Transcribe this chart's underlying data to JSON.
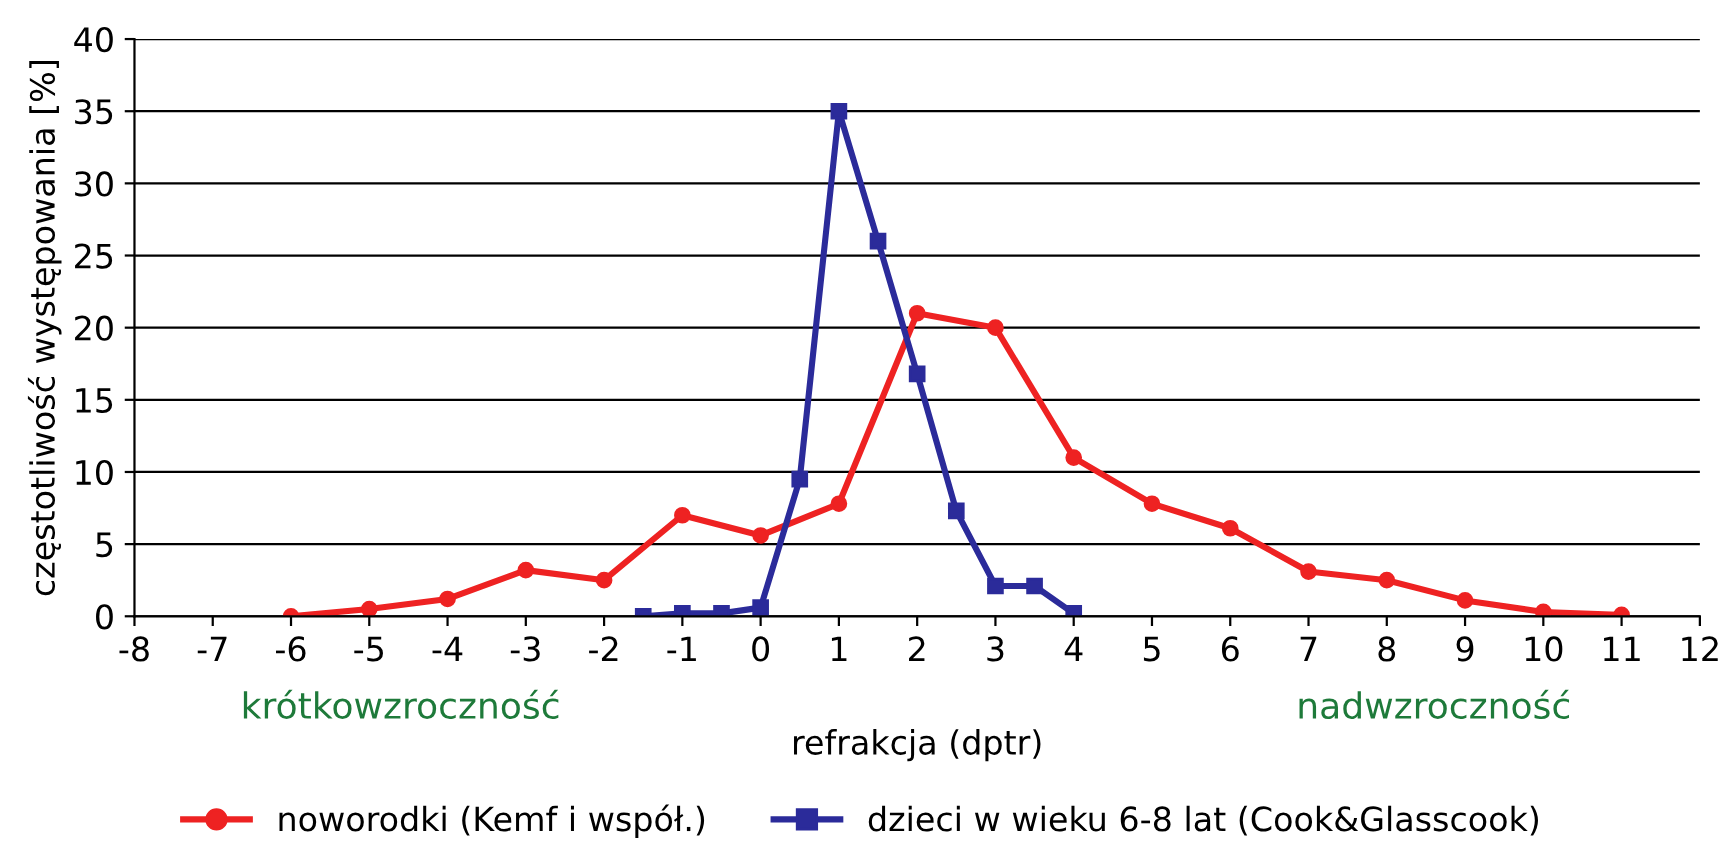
{
  "chart_data": {
    "type": "line",
    "xlabel": "refrakcja (dptr)",
    "ylabel": "częstotliwość występowania [%]",
    "annotations": [
      "krótkowzroczność",
      "nadwzroczność"
    ],
    "xlim": [
      -8,
      12
    ],
    "xticks": [
      -8,
      -7,
      -6,
      -5,
      -4,
      -3,
      -2,
      -1,
      0,
      1,
      2,
      3,
      4,
      5,
      6,
      7,
      8,
      9,
      10,
      11,
      12
    ],
    "ylim": [
      0,
      40
    ],
    "yticks": [
      0,
      5,
      10,
      15,
      20,
      25,
      30,
      35,
      40
    ],
    "grid": "y",
    "legend": "bottom",
    "series": [
      {
        "name": "noworodki (Kemf i współ.)",
        "color": "#ee2222",
        "marker": "circle",
        "x": [
          -6,
          -5,
          -4,
          -3,
          -2,
          -1,
          0,
          1,
          2,
          3,
          4,
          5,
          6,
          7,
          8,
          9,
          10,
          11
        ],
        "values": [
          0,
          0.5,
          1.2,
          3.2,
          2.5,
          7,
          5.6,
          7.8,
          21,
          20,
          11,
          7.8,
          6.1,
          3.1,
          2.5,
          1.1,
          0.3,
          0.1
        ]
      },
      {
        "name": "dzieci w wieku 6-8 lat (Cook&Glasscook)",
        "color": "#2b2b9a",
        "marker": "square",
        "x": [
          -1.5,
          -1,
          -0.5,
          0,
          0.5,
          1,
          1.5,
          2,
          2.5,
          3,
          3.5,
          4
        ],
        "values": [
          0,
          0.2,
          0.2,
          0.6,
          9.5,
          35,
          26,
          16.8,
          7.3,
          2.1,
          2.1,
          0.2
        ]
      }
    ]
  }
}
